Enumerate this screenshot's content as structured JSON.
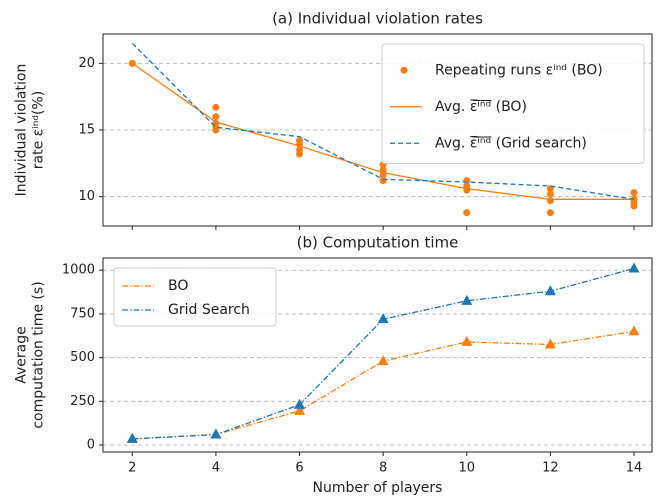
{
  "chart_data": [
    {
      "type": "line",
      "title": "(a) Individual violation rates",
      "ylabel": [
        "Individual violation",
        "rate εⁱⁿᵈ(%)"
      ],
      "xlim": [
        1.3,
        14.43
      ],
      "xticks": [
        2,
        4,
        6,
        8,
        10,
        12,
        14
      ],
      "xticklabels": false,
      "ylim": [
        7.8,
        22.2
      ],
      "yticks": [
        10,
        15,
        20
      ],
      "grid": true,
      "legend": "upper right",
      "series": [
        {
          "name": "Repeating runs εⁱⁿᵈ (BO)",
          "kind": "scatter",
          "color": "#ff7f0e",
          "x": [
            2,
            2,
            4,
            4,
            4,
            4,
            4,
            6,
            6,
            6,
            6,
            8,
            8,
            8,
            8,
            10,
            10,
            10,
            10,
            12,
            12,
            12,
            12,
            14,
            14,
            14,
            14
          ],
          "values": [
            20,
            20,
            16.7,
            16.0,
            15.5,
            15.2,
            15.0,
            14.2,
            13.9,
            13.5,
            13.2,
            12.4,
            12.0,
            11.6,
            11.2,
            11.2,
            10.8,
            10.5,
            8.8,
            10.6,
            10.2,
            9.7,
            8.8,
            10.3,
            9.8,
            9.6,
            9.3
          ]
        },
        {
          "name": "Avg. ε̅ⁱ̅ⁿ̅ᵈ̅ (BO)",
          "kind": "line",
          "dash": "none",
          "color": "#ff7f0e",
          "x": [
            2,
            4,
            6,
            8,
            10,
            12,
            14
          ],
          "values": [
            20,
            15.6,
            13.8,
            11.8,
            10.6,
            9.8,
            9.8
          ]
        },
        {
          "name": "Avg. ε̅ⁱ̅ⁿ̅ᵈ̅ (Grid search)",
          "kind": "line",
          "dash": "5,3",
          "color": "#1f77b4",
          "x": [
            2,
            4,
            6,
            8,
            10,
            12,
            14
          ],
          "values": [
            21.5,
            15.2,
            14.5,
            11.3,
            11.1,
            10.8,
            9.8
          ]
        }
      ]
    },
    {
      "type": "line",
      "title": "(b) Computation time",
      "ylabel": [
        "Average",
        "computation time (s)"
      ],
      "xlabel": "Number of players",
      "xlim": [
        1.3,
        14.43
      ],
      "xticks": [
        2,
        4,
        6,
        8,
        10,
        12,
        14
      ],
      "xticklabels": true,
      "ylim": [
        -40,
        1070
      ],
      "yticks": [
        0,
        250,
        500,
        750,
        1000
      ],
      "grid": true,
      "legend": "upper left",
      "series": [
        {
          "name": "BO",
          "kind": "line",
          "dash": "6,2,1.5,2",
          "marker": "triangle",
          "color": "#ff7f0e",
          "x": [
            2,
            4,
            6,
            8,
            10,
            12,
            14
          ],
          "values": [
            35,
            60,
            195,
            480,
            590,
            575,
            650
          ]
        },
        {
          "name": "Grid Search",
          "kind": "line",
          "dash": "6,2,1.5,2",
          "marker": "triangle",
          "color": "#1f77b4",
          "x": [
            2,
            4,
            6,
            8,
            10,
            12,
            14
          ],
          "values": [
            35,
            60,
            230,
            720,
            825,
            880,
            1010
          ]
        }
      ]
    }
  ]
}
